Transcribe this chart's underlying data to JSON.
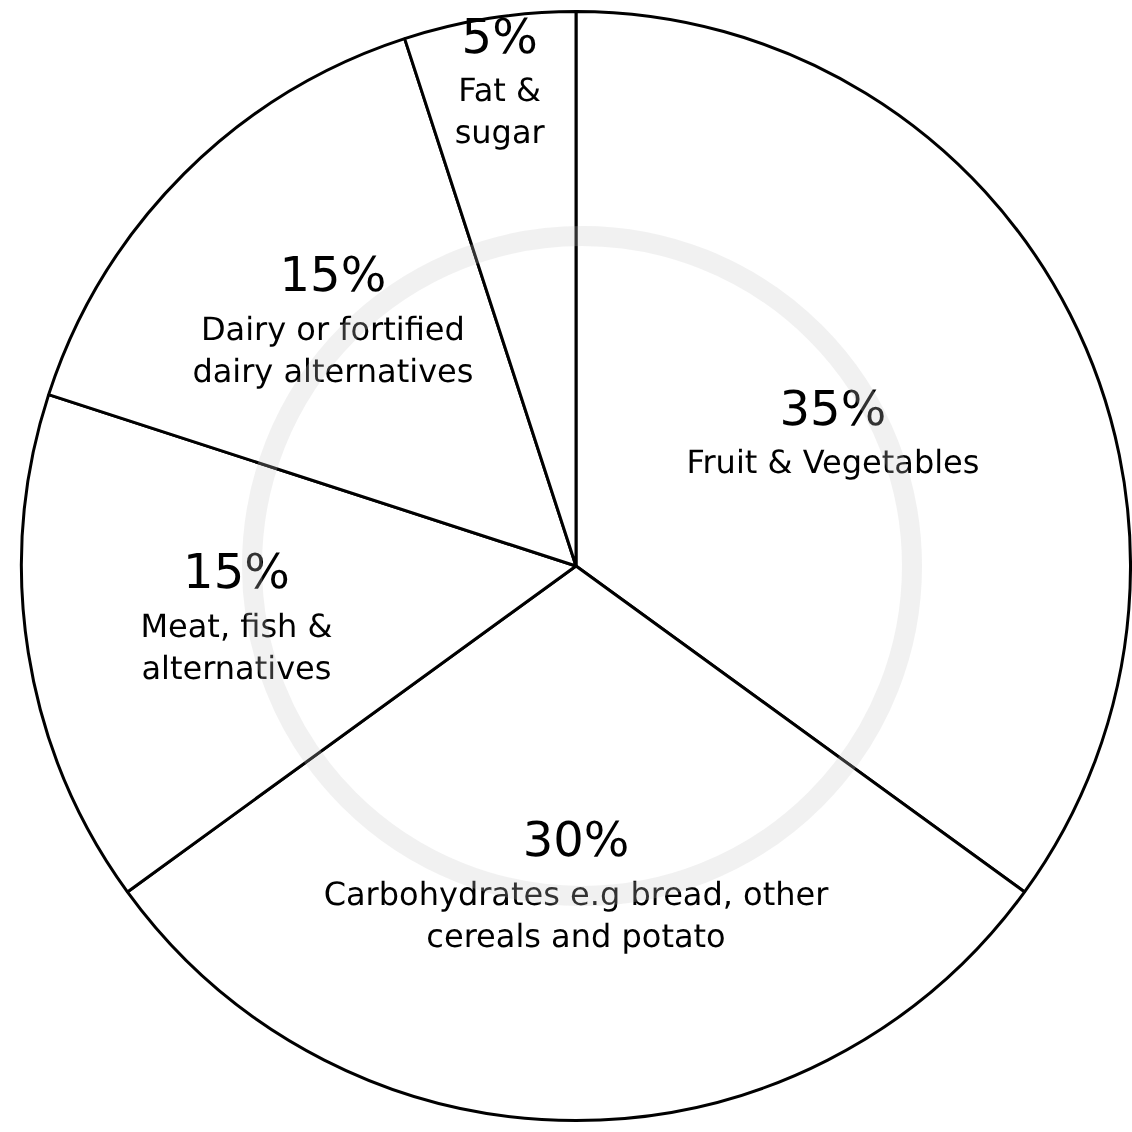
{
  "chart_data": {
    "type": "pie",
    "categories": [
      "Fruit & Vegetables",
      "Carbohydrates e.g bread, other cereals and potato",
      "Meat, fish & alternatives",
      "Dairy or fortified dairy alternatives",
      "Fat & sugar"
    ],
    "values": [
      35,
      30,
      15,
      15,
      5
    ],
    "colors": [
      "#ffffff",
      "#ffffff",
      "#ffffff",
      "#ffffff",
      "#ffffff"
    ],
    "value_labels": [
      "35%",
      "30%",
      "15%",
      "15%",
      "5%"
    ],
    "legend": false
  }
}
